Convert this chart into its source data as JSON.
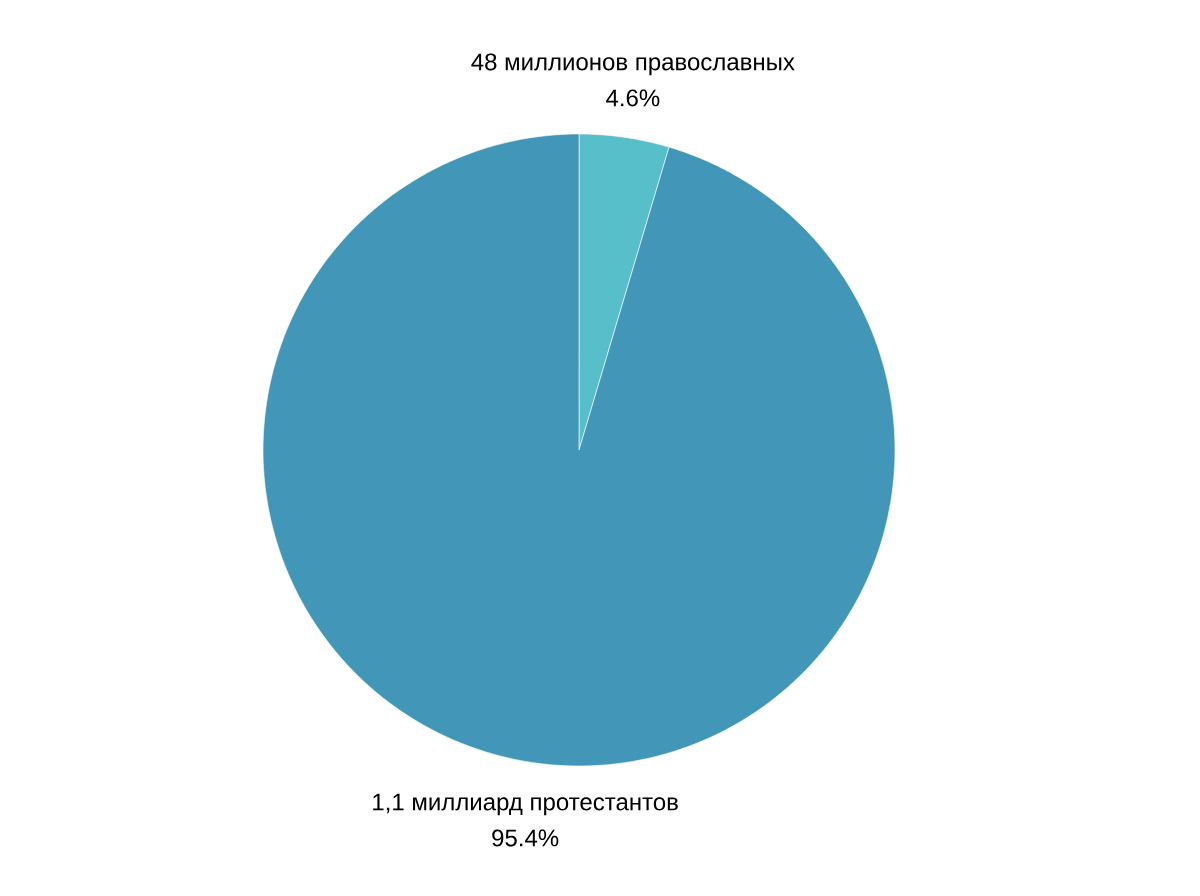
{
  "chart_data": {
    "type": "pie",
    "categories": [
      "48 миллионов православных",
      "1,1 миллиард протестантов"
    ],
    "values": [
      4.6,
      95.4
    ],
    "value_labels": [
      "4.6%",
      "95.4%"
    ],
    "colors": [
      "#57bfca",
      "#4297b8"
    ]
  }
}
